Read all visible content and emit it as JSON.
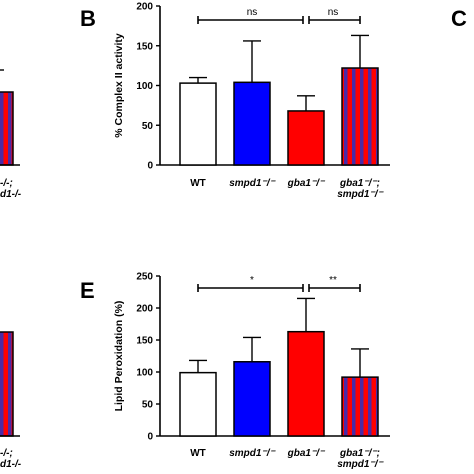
{
  "panels": {
    "b": {
      "letter": "B"
    },
    "c": {
      "letter": "C"
    },
    "e": {
      "letter": "E"
    }
  },
  "chart_data": [
    {
      "panel": "B",
      "type": "bar",
      "ylabel": "% Complex II activity",
      "ylim": [
        0,
        200
      ],
      "yticks": [
        0,
        50,
        100,
        150,
        200
      ],
      "grid": false,
      "categories": [
        {
          "main": "WT",
          "sub": ""
        },
        {
          "main": "smpd1⁻/⁻",
          "sub": ""
        },
        {
          "main": "gba1⁻/⁻",
          "sub": ""
        },
        {
          "main": "gba1⁻/⁻;",
          "sub": "smpd1⁻/⁻"
        }
      ],
      "values": [
        103,
        104,
        68,
        122
      ],
      "errors": [
        7,
        52,
        19,
        41
      ],
      "bar_styles": [
        {
          "fill": "#ffffff",
          "stripe": ""
        },
        {
          "fill": "#0000ff",
          "stripe": ""
        },
        {
          "fill": "#ff0000",
          "stripe": ""
        },
        {
          "fill": "#ff0000",
          "stripe": "#4a2aa6"
        }
      ],
      "significance": [
        {
          "from": 0,
          "to": 2,
          "label": "ns"
        },
        {
          "from": 2,
          "to": 3,
          "label": "ns"
        }
      ]
    },
    {
      "panel": "E",
      "type": "bar",
      "ylabel": "Lipid Peroxidation (%)",
      "ylim": [
        0,
        250
      ],
      "yticks": [
        0,
        50,
        100,
        150,
        200,
        250
      ],
      "grid": false,
      "categories": [
        {
          "main": "WT",
          "sub": ""
        },
        {
          "main": "smpd1⁻/⁻",
          "sub": ""
        },
        {
          "main": "gba1⁻/⁻",
          "sub": ""
        },
        {
          "main": "gba1⁻/⁻;",
          "sub": "smpd1⁻/⁻"
        }
      ],
      "values": [
        99,
        116,
        163,
        92
      ],
      "errors": [
        19,
        38,
        52,
        44
      ],
      "bar_styles": [
        {
          "fill": "#ffffff",
          "stripe": ""
        },
        {
          "fill": "#0000ff",
          "stripe": ""
        },
        {
          "fill": "#ff0000",
          "stripe": ""
        },
        {
          "fill": "#ff0000",
          "stripe": "#4a2aa6"
        }
      ],
      "significance": [
        {
          "from": 0,
          "to": 2,
          "label": "*"
        },
        {
          "from": 2,
          "to": 3,
          "label": "**"
        }
      ]
    }
  ],
  "left_fragments": {
    "top": {
      "lines": [
        "-/-;",
        "d1-/-"
      ],
      "bar_value": 92
    },
    "bottom": {
      "lines": [
        "-/-;",
        "d1-/-"
      ],
      "bar_value": 92
    }
  }
}
